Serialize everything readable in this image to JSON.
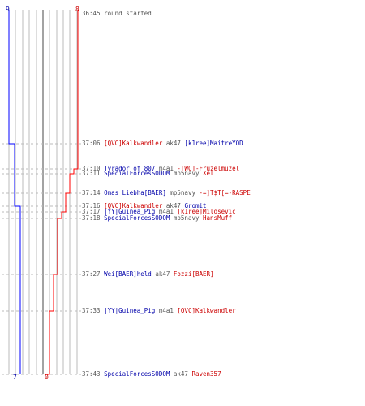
{
  "colors": {
    "blue_team": "#0000ff",
    "red_team": "#ff0000",
    "grid": "#aaaaaa",
    "center_line": "#666666",
    "time_text": "#555555",
    "dash": "#bbbbbb"
  },
  "scores": {
    "blue_start": "9",
    "red_start": "8",
    "blue_end": "7",
    "red_end": "0"
  },
  "round_start": {
    "time": "36:45",
    "text": "round started"
  },
  "events": [
    {
      "time": "37:06",
      "killer": "[QVC]Kalkwandler",
      "killer_team": "red",
      "weapon": "ak47",
      "victim": "[k1ree]MaitreYOD",
      "victim_team": "blue"
    },
    {
      "time": "37:10",
      "killer": "Tyrador of 807",
      "killer_team": "blue",
      "weapon": "m4a1",
      "victim": "-[WC]-Fruzelmuzel",
      "victim_team": "red"
    },
    {
      "time": "37:11",
      "killer": "SpecialForcesSODOM",
      "killer_team": "blue",
      "weapon": "mp5navy",
      "victim": "Xel",
      "victim_team": "red"
    },
    {
      "time": "37:14",
      "killer": "Omas Liebha[BAER]",
      "killer_team": "blue",
      "weapon": "mp5navy",
      "victim": "-=]T$T[=-RASPE",
      "victim_team": "red"
    },
    {
      "time": "37:16",
      "killer": "[QVC]Kalkwandler",
      "killer_team": "red",
      "weapon": "ak47",
      "victim": "Gromit",
      "victim_team": "blue"
    },
    {
      "time": "37:17",
      "killer": "|YY|Guinea_Pig",
      "killer_team": "blue",
      "weapon": "m4a1",
      "victim": "[k1ree]Milosevic",
      "victim_team": "red"
    },
    {
      "time": "37:18",
      "killer": "SpecialForcesSODOM",
      "killer_team": "blue",
      "weapon": "mp5navy",
      "victim": "HansMuff",
      "victim_team": "red"
    },
    {
      "time": "37:27",
      "killer": "Wei[BAER]held",
      "killer_team": "blue",
      "weapon": "ak47",
      "victim": "Fozzi[BAER]",
      "victim_team": "red"
    },
    {
      "time": "37:33",
      "killer": "|YY|Guinea_Pig",
      "killer_team": "blue",
      "weapon": "m4a1",
      "victim": "[QVC]Kalkwandler",
      "victim_team": "red"
    },
    {
      "time": "37:43",
      "killer": "SpecialForcesSODOM",
      "killer_team": "blue",
      "weapon": "ak47",
      "victim": "Raven357",
      "victim_team": "red"
    }
  ]
}
